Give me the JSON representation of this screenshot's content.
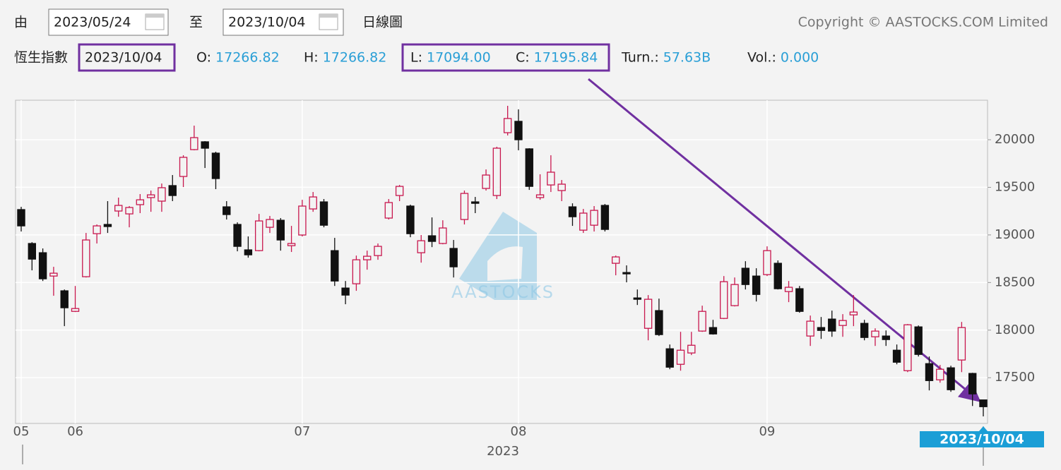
{
  "header": {
    "from_label": "由",
    "from_date": "2023/05/24",
    "to_label": "至",
    "to_date": "2023/10/04",
    "chart_kind": "日線圖",
    "copyright": "Copyright © AASTOCKS.COM Limited",
    "index_name": "恆生指數",
    "date": "2023/10/04",
    "quote": [
      {
        "label": "O:",
        "value": "17266.82"
      },
      {
        "label": "H:",
        "value": "17266.82"
      },
      {
        "label": "L:",
        "value": "17094.00"
      },
      {
        "label": "C:",
        "value": "17195.84"
      },
      {
        "label": "Turn.:",
        "value": "57.63B"
      },
      {
        "label": "Vol.:",
        "value": "0.000"
      }
    ]
  },
  "chart_data": {
    "type": "candlestick",
    "xlabel": "2023",
    "cursor_label": "2023/10/04",
    "watermark": "AASTOCKS",
    "up_color": "#c8174e",
    "down_color": "#111111",
    "grid": true,
    "ylim": [
      17020,
      20415
    ],
    "yticks": [
      17500,
      18000,
      18500,
      19000,
      19500,
      20000
    ],
    "categories": [
      "05",
      null,
      null,
      null,
      null,
      "06",
      null,
      null,
      null,
      null,
      null,
      null,
      null,
      null,
      null,
      null,
      null,
      null,
      null,
      null,
      null,
      null,
      null,
      null,
      null,
      null,
      "07",
      null,
      null,
      null,
      null,
      null,
      null,
      null,
      null,
      null,
      null,
      null,
      null,
      null,
      null,
      null,
      null,
      null,
      null,
      null,
      "08",
      null,
      null,
      null,
      null,
      null,
      null,
      null,
      null,
      null,
      null,
      null,
      null,
      null,
      null,
      null,
      null,
      null,
      null,
      null,
      null,
      null,
      null,
      "09",
      null,
      null,
      null,
      null,
      null,
      null,
      null,
      null,
      null,
      null,
      null,
      null,
      null,
      null,
      null,
      null,
      null,
      null,
      null,
      null
    ],
    "open": [
      19266,
      18910,
      18813,
      18568,
      18413,
      18197,
      18561,
      19013,
      19110,
      19251,
      19221,
      19318,
      19392,
      19355,
      19518,
      19614,
      19896,
      19978,
      19859,
      19295,
      19110,
      18843,
      18835,
      19080,
      19154,
      18887,
      18999,
      19273,
      19347,
      18835,
      18442,
      18487,
      18739,
      18783,
      19177,
      19414,
      19303,
      18813,
      18991,
      18910,
      18858,
      19162,
      19347,
      19488,
      19414,
      20074,
      20193,
      19904,
      19392,
      19525,
      19466,
      19295,
      19050,
      19102,
      19310,
      18702,
      18605,
      18338,
      18019,
      18205,
      17804,
      17641,
      17760,
      17990,
      18027,
      18123,
      18257,
      18650,
      18568,
      18583,
      18702,
      18405,
      18435,
      17938,
      18027,
      18116,
      18049,
      18160,
      18071,
      17930,
      17938,
      17789,
      17574,
      18034,
      17648,
      17478,
      17604,
      17686,
      17545,
      17266.82
    ],
    "high": [
      19295,
      18924,
      18858,
      18665,
      18427,
      18464,
      19021,
      19110,
      19355,
      19392,
      19303,
      19429,
      19466,
      19540,
      19629,
      19837,
      20148,
      19985,
      19874,
      19355,
      19132,
      18984,
      19221,
      19199,
      19177,
      19095,
      19369,
      19451,
      19377,
      18969,
      18516,
      18783,
      18835,
      18910,
      19377,
      19525,
      19318,
      18999,
      19184,
      19154,
      18947,
      19466,
      19399,
      19688,
      19926,
      20356,
      20319,
      19911,
      19637,
      19837,
      19577,
      19332,
      19273,
      19303,
      19325,
      18783,
      18680,
      18427,
      18368,
      18331,
      17849,
      17982,
      17982,
      18257,
      18108,
      18568,
      18553,
      18724,
      18650,
      18880,
      18732,
      18516,
      18464,
      18153,
      18138,
      18205,
      18168,
      18368,
      18108,
      18019,
      17997,
      17849,
      18064,
      18049,
      17723,
      17634,
      17626,
      18086,
      17552,
      17266.82
    ],
    "low": [
      19036,
      18628,
      18516,
      18361,
      18042,
      18190,
      18553,
      18910,
      19021,
      19191,
      19080,
      19229,
      19243,
      19243,
      19355,
      19503,
      19889,
      19703,
      19481,
      19162,
      18828,
      18761,
      18828,
      19021,
      18835,
      18821,
      18984,
      19243,
      19080,
      18464,
      18272,
      18413,
      18635,
      18739,
      19162,
      19355,
      18976,
      18709,
      18872,
      18902,
      18553,
      19110,
      19229,
      19466,
      19377,
      20045,
      19889,
      19473,
      19369,
      19451,
      19355,
      19095,
      19021,
      19036,
      19036,
      18576,
      18502,
      18264,
      17893,
      17938,
      17589,
      17574,
      17738,
      17982,
      17953,
      18116,
      18249,
      18427,
      18301,
      18568,
      18427,
      18294,
      18183,
      17834,
      17908,
      17930,
      17930,
      18042,
      17893,
      17834,
      17834,
      17641,
      17559,
      17723,
      17367,
      17448,
      17352,
      17559,
      17203,
      17094
    ],
    "close": [
      19095,
      18746,
      18539,
      18598,
      18235,
      18227,
      18947,
      19095,
      19088,
      19310,
      19288,
      19369,
      19421,
      19496,
      19414,
      19815,
      20022,
      19911,
      19592,
      19214,
      18880,
      18791,
      19147,
      19162,
      18947,
      18910,
      19303,
      19399,
      19102,
      18516,
      18368,
      18739,
      18776,
      18880,
      19340,
      19510,
      19013,
      18939,
      18932,
      19073,
      18665,
      19436,
      19332,
      19629,
      19911,
      20223,
      20000,
      19510,
      19421,
      19659,
      19533,
      19191,
      19229,
      19258,
      19058,
      18769,
      18591,
      18324,
      18324,
      17953,
      17611,
      17789,
      17841,
      18197,
      17960,
      18509,
      18479,
      18479,
      18375,
      18835,
      18435,
      18450,
      18197,
      18094,
      17997,
      17990,
      18101,
      18190,
      17923,
      17990,
      17901,
      17663,
      18056,
      17745,
      17470,
      17589,
      17374,
      18027,
      17330,
      17195.84
    ]
  }
}
